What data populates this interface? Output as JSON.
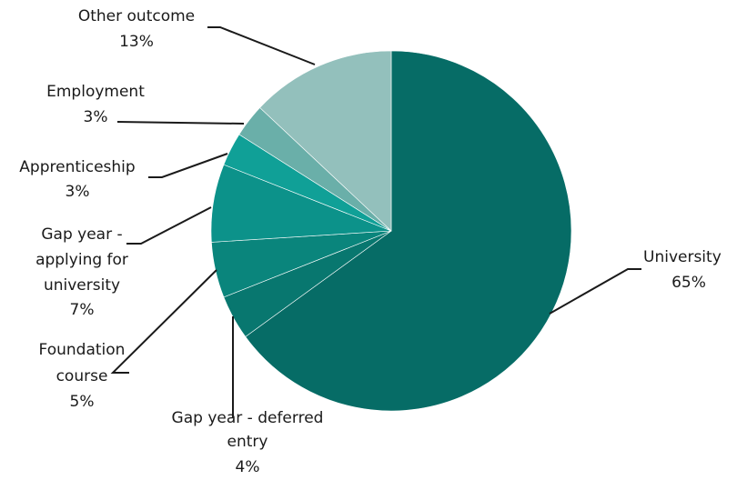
{
  "chart_data": {
    "type": "pie",
    "title": "",
    "slices": [
      {
        "label": "University",
        "value": 65,
        "value_label": "65%",
        "color": "#066c66"
      },
      {
        "label": "Gap year - deferred entry",
        "value": 4,
        "value_label": "4%",
        "color": "#08776f"
      },
      {
        "label": "Foundation course",
        "value": 5,
        "value_label": "5%",
        "color": "#0a857c"
      },
      {
        "label": "Gap year - applying for university",
        "value": 7,
        "value_label": "7%",
        "color": "#0c928a"
      },
      {
        "label": "Apprenticeship",
        "value": 3,
        "value_label": "3%",
        "color": "#10a097"
      },
      {
        "label": "Employment",
        "value": 3,
        "value_label": "3%",
        "color": "#6aafa9"
      },
      {
        "label": "Other outcome",
        "value": 13,
        "value_label": "13%",
        "color": "#93c0bc"
      }
    ]
  }
}
